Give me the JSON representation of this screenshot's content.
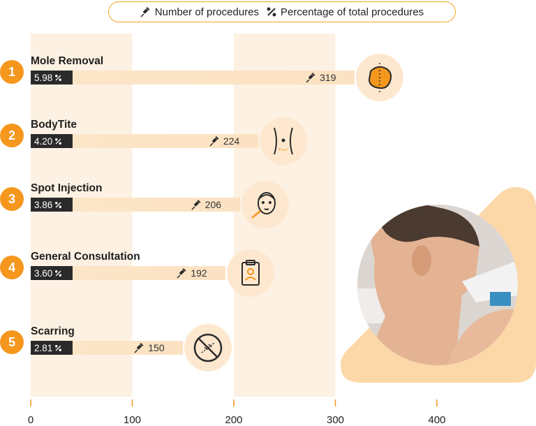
{
  "legend": {
    "count_label": "Number of procedures",
    "percent_label": "Percentage of total procedures"
  },
  "colors": {
    "accent": "#f5961d",
    "bar": "#fde5c8",
    "band": "#fdf1e3",
    "dark": "#2a2a2a"
  },
  "chart_data": {
    "type": "bar",
    "orientation": "horizontal",
    "categories": [
      "Mole Removal",
      "BodyTite",
      "Spot Injection",
      "General Consultation",
      "Scarring"
    ],
    "ranks": [
      "1",
      "2",
      "3",
      "4",
      "5"
    ],
    "values": [
      319,
      224,
      206,
      192,
      150
    ],
    "value_labels": [
      "319",
      "224",
      "206",
      "192",
      "150"
    ],
    "percentages": [
      "5.98",
      "4.20",
      "3.86",
      "3.60",
      "2.81"
    ],
    "icons": [
      "mole-icon",
      "waist-icon",
      "face-injection-icon",
      "clipboard-icon",
      "no-scar-icon"
    ],
    "xlim": [
      0,
      480
    ],
    "xticks": [
      "0",
      "100",
      "200",
      "300",
      "400"
    ],
    "title": "",
    "xlabel": "",
    "ylabel": "",
    "grid": "alternating vertical bands"
  }
}
